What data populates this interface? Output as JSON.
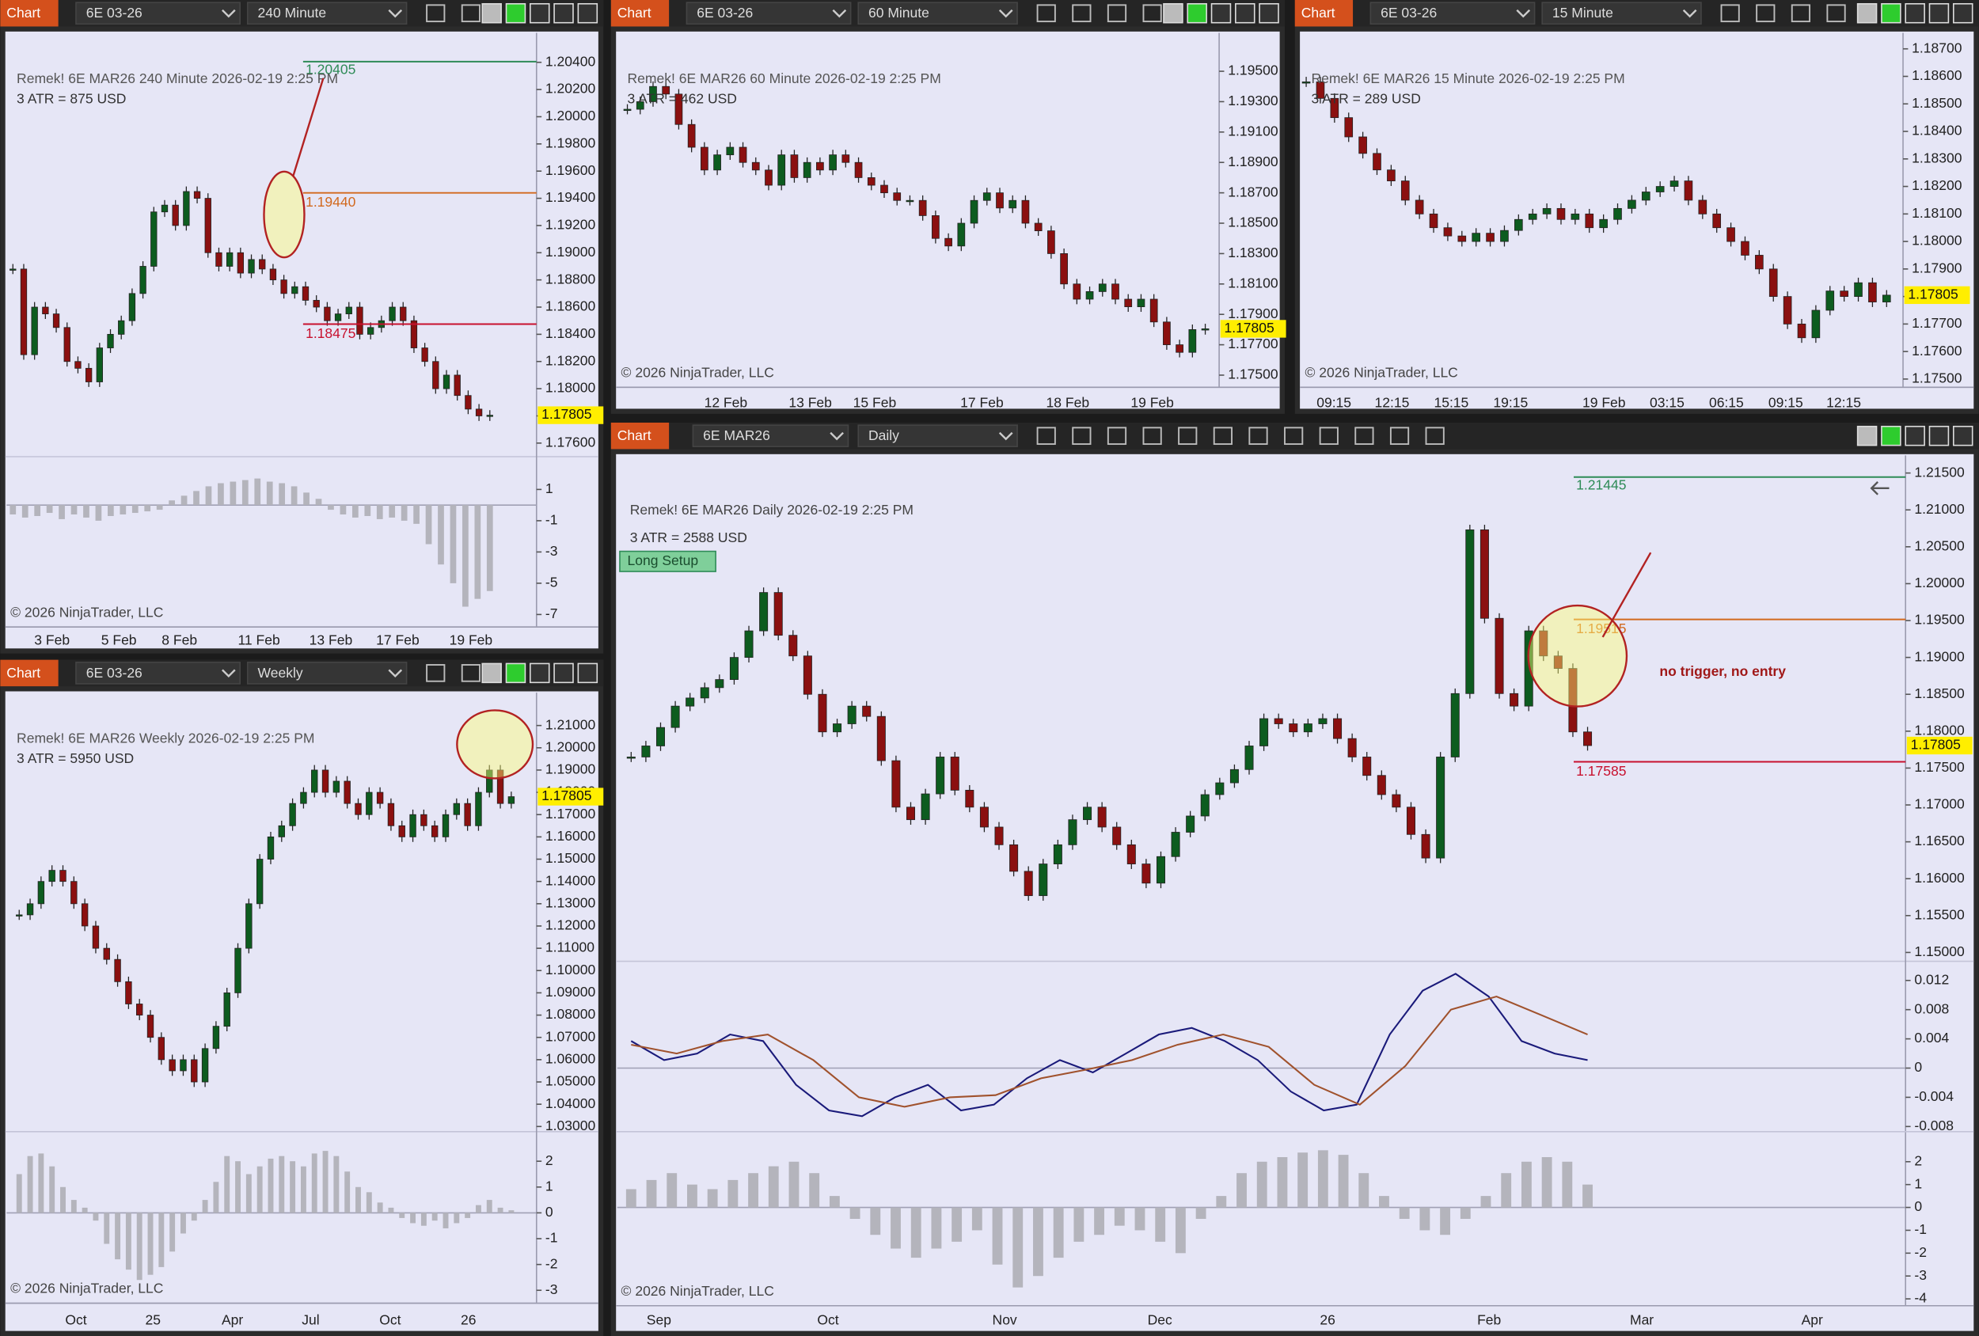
{
  "windows": [
    {
      "tab": "Chart",
      "instrument": "6E 03-26",
      "interval": "240 Minute",
      "title": "Remek!  6E MAR26  240 Minute  2026-02-19 2:25 PM",
      "atr": "3 ATR = 875 USD",
      "copyright": "© 2026 NinjaTrader, LLC",
      "xlabels": [
        "3 Feb",
        "5 Feb",
        "8 Feb",
        "11 Feb",
        "13 Feb",
        "17 Feb",
        "19 Feb"
      ],
      "price": {
        "ylim": [
          1.175,
          1.2058
        ],
        "yticks": [
          {
            "value": 1.204,
            "label": "1.20400"
          },
          {
            "value": 1.202,
            "label": "1.20200"
          },
          {
            "value": 1.2,
            "label": "1.20000"
          },
          {
            "value": 1.198,
            "label": "1.19800"
          },
          {
            "value": 1.196,
            "label": "1.19600"
          },
          {
            "value": 1.194,
            "label": "1.19400"
          },
          {
            "value": 1.192,
            "label": "1.19200"
          },
          {
            "value": 1.19,
            "label": "1.19000"
          },
          {
            "value": 1.188,
            "label": "1.18800"
          },
          {
            "value": 1.186,
            "label": "1.18600"
          },
          {
            "value": 1.184,
            "label": "1.18400"
          },
          {
            "value": 1.182,
            "label": "1.18200"
          },
          {
            "value": 1.18,
            "label": "1.18000"
          },
          {
            "value": 1.178,
            "label": "1.17800"
          },
          {
            "value": 1.176,
            "label": "1.17600"
          }
        ],
        "closes": [
          1.1888,
          1.1825,
          1.186,
          1.1855,
          1.1845,
          1.182,
          1.1815,
          1.1805,
          1.183,
          1.184,
          1.185,
          1.187,
          1.189,
          1.193,
          1.1935,
          1.192,
          1.1945,
          1.194,
          1.19,
          1.189,
          1.19,
          1.1885,
          1.1895,
          1.1888,
          1.188,
          1.187,
          1.1875,
          1.1865,
          1.186,
          1.185,
          1.1855,
          1.186,
          1.184,
          1.1845,
          1.185,
          1.186,
          1.185,
          1.183,
          1.182,
          1.18,
          1.181,
          1.1795,
          1.1785,
          1.178,
          1.17805
        ],
        "last": 1.17805
      },
      "levels": [
        {
          "value": 1.20405,
          "label": "1.20405",
          "color": "#2e8b57"
        },
        {
          "value": 1.1944,
          "label": "1.19440",
          "color": "#d2691e"
        },
        {
          "value": 1.18475,
          "label": "1.18475",
          "color": "#c8102e"
        }
      ],
      "oscillators": [
        {
          "ylim": [
            -7.8,
            2.45
          ],
          "yticks": [
            1,
            -1,
            -3,
            -5,
            -7
          ],
          "histogram": [
            -0.6,
            -0.8,
            -0.7,
            -0.5,
            -0.9,
            -0.6,
            -0.8,
            -1.0,
            -0.7,
            -0.6,
            -0.5,
            -0.4,
            -0.3,
            0.3,
            0.6,
            0.9,
            1.2,
            1.4,
            1.5,
            1.6,
            1.7,
            1.5,
            1.4,
            1.2,
            0.8,
            0.4,
            -0.3,
            -0.6,
            -0.8,
            -0.7,
            -0.9,
            -0.8,
            -1.0,
            -1.2,
            -2.5,
            -3.8,
            -5.0,
            -6.5,
            -6.0,
            -5.5
          ]
        }
      ]
    },
    {
      "tab": "Chart",
      "instrument": "6E 03-26",
      "interval": "60 Minute",
      "title": "Remek!  6E MAR26  60 Minute  2026-02-19 2:25 PM",
      "atr": "3 ATR = 462 USD",
      "copyright": "© 2026 NinjaTrader, LLC",
      "xlabels": [
        "12 Feb",
        "13 Feb",
        "15 Feb",
        "17 Feb",
        "18 Feb",
        "19 Feb"
      ],
      "price": {
        "ylim": [
          1.1742,
          1.1972
        ],
        "yticks": [
          {
            "value": 1.195,
            "label": "1.19500"
          },
          {
            "value": 1.193,
            "label": "1.19300"
          },
          {
            "value": 1.191,
            "label": "1.19100"
          },
          {
            "value": 1.189,
            "label": "1.18900"
          },
          {
            "value": 1.187,
            "label": "1.18700"
          },
          {
            "value": 1.185,
            "label": "1.18500"
          },
          {
            "value": 1.183,
            "label": "1.18300"
          },
          {
            "value": 1.181,
            "label": "1.18100"
          },
          {
            "value": 1.179,
            "label": "1.17900"
          },
          {
            "value": 1.177,
            "label": "1.17700"
          },
          {
            "value": 1.175,
            "label": "1.17500"
          }
        ],
        "closes": [
          1.1925,
          1.193,
          1.194,
          1.1935,
          1.1915,
          1.19,
          1.1885,
          1.1895,
          1.19,
          1.189,
          1.1885,
          1.1875,
          1.1895,
          1.188,
          1.189,
          1.1885,
          1.1895,
          1.189,
          1.188,
          1.1875,
          1.187,
          1.1865,
          1.1865,
          1.1855,
          1.184,
          1.1835,
          1.185,
          1.1865,
          1.187,
          1.186,
          1.1865,
          1.185,
          1.1845,
          1.183,
          1.181,
          1.18,
          1.1805,
          1.181,
          1.18,
          1.1795,
          1.18,
          1.1785,
          1.177,
          1.1765,
          1.178,
          1.17805
        ],
        "last": 1.17805
      },
      "levels": [],
      "oscillators": []
    },
    {
      "tab": "Chart",
      "instrument": "6E 03-26",
      "interval": "15 Minute",
      "title": "Remek!  6E MAR26  15 Minute  2026-02-19 2:25 PM",
      "atr": "3 ATR = 289 USD",
      "copyright": "© 2026 NinjaTrader, LLC",
      "xlabels": [
        "09:15",
        "12:15",
        "15:15",
        "19:15",
        "19 Feb",
        "03:15",
        "06:15",
        "09:15",
        "12:15"
      ],
      "price": {
        "ylim": [
          1.1747,
          1.1874
        ],
        "yticks": [
          {
            "value": 1.187,
            "label": "1.18700"
          },
          {
            "value": 1.186,
            "label": "1.18600"
          },
          {
            "value": 1.185,
            "label": "1.18500"
          },
          {
            "value": 1.184,
            "label": "1.18400"
          },
          {
            "value": 1.183,
            "label": "1.18300"
          },
          {
            "value": 1.182,
            "label": "1.18200"
          },
          {
            "value": 1.181,
            "label": "1.18100"
          },
          {
            "value": 1.18,
            "label": "1.18000"
          },
          {
            "value": 1.179,
            "label": "1.17900"
          },
          {
            "value": 1.178,
            "label": "1.17800"
          },
          {
            "value": 1.177,
            "label": "1.17700"
          },
          {
            "value": 1.176,
            "label": "1.17600"
          },
          {
            "value": 1.175,
            "label": "1.17500"
          }
        ],
        "closes": [
          1.1858,
          1.1852,
          1.1845,
          1.1838,
          1.1832,
          1.1826,
          1.1822,
          1.1815,
          1.181,
          1.1805,
          1.1802,
          1.18,
          1.1803,
          1.18,
          1.1804,
          1.1808,
          1.181,
          1.1812,
          1.1808,
          1.181,
          1.1805,
          1.1808,
          1.1812,
          1.1815,
          1.1818,
          1.182,
          1.1822,
          1.1815,
          1.181,
          1.1805,
          1.18,
          1.1795,
          1.179,
          1.178,
          1.177,
          1.1765,
          1.1775,
          1.1782,
          1.178,
          1.1785,
          1.1778,
          1.17805
        ],
        "last": 1.17805
      },
      "levels": [],
      "oscillators": []
    },
    {
      "tab": "Chart",
      "instrument": "6E 03-26",
      "interval": "Weekly",
      "title": "Remek!  6E MAR26  Weekly  2026-02-19 2:25 PM",
      "atr": "3 ATR = 5950 USD",
      "copyright": "© 2026 NinjaTrader, LLC",
      "xlabels": [
        "Oct",
        "25",
        "Apr",
        "Jul",
        "Oct",
        "26"
      ],
      "price": {
        "ylim": [
          1.0277,
          1.2225
        ],
        "yticks": [
          {
            "value": 1.21,
            "label": "1.21000"
          },
          {
            "value": 1.2,
            "label": "1.20000"
          },
          {
            "value": 1.19,
            "label": "1.19000"
          },
          {
            "value": 1.18,
            "label": "1.18000"
          },
          {
            "value": 1.17,
            "label": "1.17000"
          },
          {
            "value": 1.16,
            "label": "1.16000"
          },
          {
            "value": 1.15,
            "label": "1.15000"
          },
          {
            "value": 1.14,
            "label": "1.14000"
          },
          {
            "value": 1.13,
            "label": "1.13000"
          },
          {
            "value": 1.12,
            "label": "1.12000"
          },
          {
            "value": 1.11,
            "label": "1.11000"
          },
          {
            "value": 1.1,
            "label": "1.10000"
          },
          {
            "value": 1.09,
            "label": "1.09000"
          },
          {
            "value": 1.08,
            "label": "1.08000"
          },
          {
            "value": 1.07,
            "label": "1.07000"
          },
          {
            "value": 1.06,
            "label": "1.06000"
          },
          {
            "value": 1.05,
            "label": "1.05000"
          },
          {
            "value": 1.04,
            "label": "1.04000"
          },
          {
            "value": 1.03,
            "label": "1.03000"
          }
        ],
        "closes": [
          1.125,
          1.13,
          1.14,
          1.145,
          1.14,
          1.13,
          1.12,
          1.11,
          1.105,
          1.095,
          1.085,
          1.08,
          1.07,
          1.06,
          1.055,
          1.06,
          1.05,
          1.065,
          1.075,
          1.09,
          1.11,
          1.13,
          1.15,
          1.16,
          1.165,
          1.175,
          1.18,
          1.19,
          1.18,
          1.185,
          1.175,
          1.17,
          1.18,
          1.175,
          1.165,
          1.16,
          1.17,
          1.165,
          1.16,
          1.17,
          1.175,
          1.165,
          1.18,
          1.19,
          1.175,
          1.17805
        ],
        "last": 1.17805
      },
      "levels": [],
      "oscillators": [
        {
          "ylim": [
            -3.5,
            3.0
          ],
          "yticks": [
            2,
            1,
            0,
            -1,
            -2,
            -3
          ],
          "histogram": [
            1.5,
            2.2,
            2.3,
            1.8,
            1.0,
            0.5,
            0.2,
            -0.3,
            -1.2,
            -1.8,
            -2.2,
            -2.6,
            -2.4,
            -2.1,
            -1.5,
            -0.8,
            -0.3,
            0.5,
            1.2,
            2.2,
            2.0,
            1.5,
            1.8,
            2.1,
            2.2,
            2.0,
            1.8,
            2.3,
            2.4,
            2.2,
            1.6,
            1.0,
            0.8,
            0.4,
            0.2,
            -0.2,
            -0.4,
            -0.5,
            -0.3,
            -0.6,
            -0.4,
            -0.2,
            0.3,
            0.5,
            0.2,
            0.1
          ]
        }
      ]
    },
    {
      "tab": "Chart",
      "instrument": "6E MAR26",
      "interval": "Daily",
      "title": "Remek!  6E MAR26  Daily  2026-02-19 2:25 PM",
      "atr": "3 ATR = 2588 USD",
      "copyright": "© 2026 NinjaTrader, LLC",
      "setup": "Long Setup",
      "note": "no trigger, no entry",
      "xlabels": [
        "Sep",
        "Oct",
        "Nov",
        "Dec",
        "26",
        "Feb",
        "Mar",
        "Apr"
      ],
      "price": {
        "ylim": [
          1.1488,
          1.2167
        ],
        "yticks": [
          {
            "value": 1.215,
            "label": "1.21500"
          },
          {
            "value": 1.21,
            "label": "1.21000"
          },
          {
            "value": 1.205,
            "label": "1.20500"
          },
          {
            "value": 1.2,
            "label": "1.20000"
          },
          {
            "value": 1.195,
            "label": "1.19500"
          },
          {
            "value": 1.19,
            "label": "1.19000"
          },
          {
            "value": 1.185,
            "label": "1.18500"
          },
          {
            "value": 1.18,
            "label": "1.18000"
          },
          {
            "value": 1.175,
            "label": "1.17500"
          },
          {
            "value": 1.17,
            "label": "1.17000"
          },
          {
            "value": 1.165,
            "label": "1.16500"
          },
          {
            "value": 1.16,
            "label": "1.16000"
          },
          {
            "value": 1.155,
            "label": "1.15500"
          },
          {
            "value": 1.15,
            "label": "1.15000"
          }
        ],
        "closes": [
          1.1765,
          1.178,
          1.1805,
          1.1834,
          1.1845,
          1.1859,
          1.187,
          1.19,
          1.1936,
          1.1988,
          1.193,
          1.1902,
          1.185,
          1.1799,
          1.181,
          1.1834,
          1.182,
          1.176,
          1.1697,
          1.168,
          1.1715,
          1.1765,
          1.172,
          1.1697,
          1.167,
          1.1646,
          1.161,
          1.1577,
          1.162,
          1.1646,
          1.168,
          1.1697,
          1.167,
          1.1646,
          1.162,
          1.1594,
          1.163,
          1.1663,
          1.1685,
          1.1714,
          1.173,
          1.1748,
          1.178,
          1.1817,
          1.181,
          1.1799,
          1.181,
          1.1817,
          1.179,
          1.1765,
          1.174,
          1.1714,
          1.1697,
          1.166,
          1.1628,
          1.1765,
          1.1851,
          1.2073,
          1.1953,
          1.1851,
          1.1834,
          1.1936,
          1.1902,
          1.1885,
          1.1799,
          1.17805
        ],
        "last": 1.17805
      },
      "levels": [
        {
          "value": 1.21445,
          "label": "1.21445",
          "color": "#2e8b57"
        },
        {
          "value": 1.19515,
          "label": "1.19515",
          "color": "#d2691e"
        },
        {
          "value": 1.17585,
          "label": "1.17585",
          "color": "#c8102e"
        }
      ],
      "oscillators": [
        {
          "ylim": [
            -0.0087,
            0.0141
          ],
          "yticks": [
            0.012,
            0.008,
            0.004,
            0,
            -0.004,
            -0.008
          ],
          "lines": [
            {
              "color": "#1a1a7a",
              "values": [
                0.0037,
                0.0011,
                0.002,
                0.0046,
                0.0037,
                -0.0023,
                -0.0058,
                -0.0066,
                -0.004,
                -0.0023,
                -0.0058,
                -0.005,
                -0.0014,
                0.0011,
                -0.0006,
                0.002,
                0.0046,
                0.0055,
                0.0037,
                0.0011,
                -0.0032,
                -0.0058,
                -0.005,
                0.0046,
                0.0106,
                0.0129,
                0.0098,
                0.0037,
                0.002,
                0.0011
              ]
            },
            {
              "color": "#a0522d",
              "values": [
                0.0032,
                0.002,
                0.0037,
                0.0046,
                0.0011,
                -0.004,
                -0.0053,
                -0.004,
                -0.0037,
                -0.0014,
                -0.0002,
                0.0011,
                0.0032,
                0.0046,
                0.0029,
                -0.0023,
                -0.005,
                0.0003,
                0.008,
                0.0098,
                0.0072,
                0.0046
              ]
            }
          ]
        },
        {
          "ylim": [
            -4.3,
            3.15
          ],
          "yticks": [
            2,
            1,
            0,
            -1,
            -2,
            -3,
            -4
          ],
          "histogram": [
            0.8,
            1.2,
            1.5,
            1.0,
            0.8,
            1.2,
            1.5,
            1.8,
            2.0,
            1.5,
            0.5,
            -0.5,
            -1.2,
            -1.8,
            -2.2,
            -1.8,
            -1.5,
            -1.0,
            -2.5,
            -3.5,
            -3.0,
            -2.2,
            -1.5,
            -1.2,
            -0.8,
            -1.0,
            -1.5,
            -2.0,
            -0.5,
            0.5,
            1.5,
            2.0,
            2.2,
            2.4,
            2.5,
            2.3,
            1.5,
            0.5,
            -0.5,
            -1.0,
            -1.2,
            -0.5,
            0.5,
            1.5,
            2.0,
            2.2,
            2.0,
            1.0
          ]
        }
      ]
    }
  ]
}
